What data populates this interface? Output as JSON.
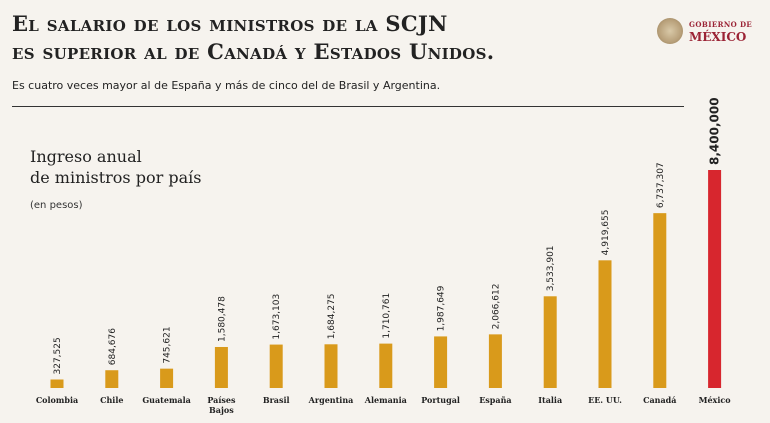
{
  "header": {
    "title_line1": "El salario de los ministros de la SCJN",
    "title_line2": "es superior al de Canadá y Estados Unidos.",
    "subtitle": "Es cuatro veces mayor al de España y más de cinco del de Brasil y Argentina."
  },
  "logo": {
    "line1": "GOBIERNO DE",
    "line2": "MÉXICO",
    "emblem": "coat-of-arms-icon"
  },
  "colors": {
    "bar": "#d99a1b",
    "highlight_bar": "#d7262e",
    "background": "#f6f3ee"
  },
  "chart_data": {
    "type": "bar",
    "title_line1": "Ingreso anual",
    "title_line2": "de ministros por país",
    "unit": "(en pesos)",
    "categories": [
      "Colombia",
      "Chile",
      "Guatemala",
      "Países Bajos",
      "Brasil",
      "Argentina",
      "Alemania",
      "Portugal",
      "España",
      "Italia",
      "EE. UU.",
      "Canadá",
      "México"
    ],
    "values": [
      327525,
      684676,
      745621,
      1580478,
      1673103,
      1684275,
      1710761,
      1987649,
      2066612,
      3533901,
      4919655,
      6737307,
      8400000
    ],
    "value_labels": [
      "327,525",
      "684,676",
      "745,621",
      "1,580,478",
      "1,673,103",
      "1,684,275",
      "1,710,761",
      "1,987,649",
      "2,066,612",
      "3,533,901",
      "4,919,655",
      "6,737,307",
      "8,400,000"
    ],
    "highlight": "México",
    "grid": false,
    "legend": "none"
  }
}
